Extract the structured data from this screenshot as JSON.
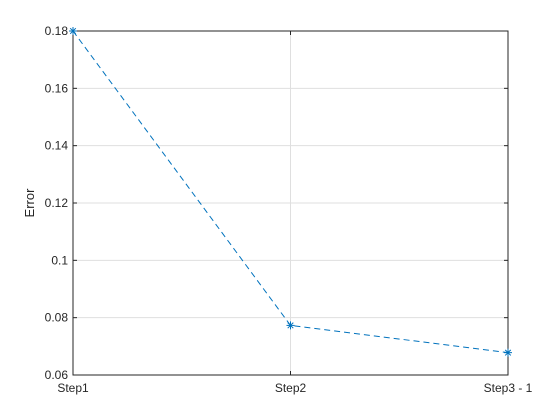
{
  "chart_data": {
    "type": "line",
    "categories": [
      "Step1",
      "Step2",
      "Step3 - 1"
    ],
    "series": [
      {
        "values": [
          0.18,
          0.0773,
          0.0678
        ],
        "color": "#0072BD",
        "line_style": "dashed",
        "marker": "asterisk"
      }
    ],
    "xlabel": "",
    "ylabel": "Error",
    "ylim": [
      0.06,
      0.18
    ],
    "yticks": [
      "0.06",
      "0.08",
      "0.1",
      "0.12",
      "0.14",
      "0.16",
      "0.18"
    ],
    "grid": true,
    "box": true
  }
}
